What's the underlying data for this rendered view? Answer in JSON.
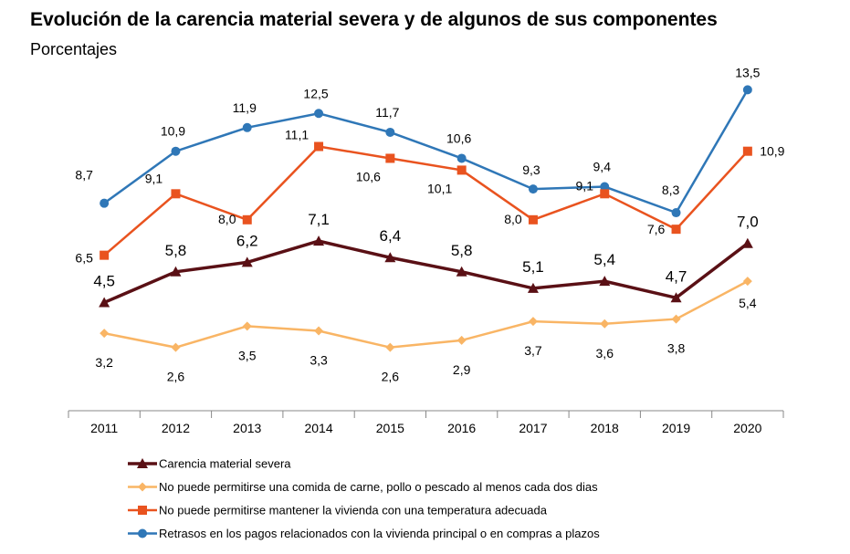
{
  "chart_data": {
    "type": "line",
    "title": "Evolución de la carencia material severa y de algunos de sus componentes",
    "subtitle": "Porcentajes",
    "categories": [
      "2011",
      "2012",
      "2013",
      "2014",
      "2015",
      "2016",
      "2017",
      "2018",
      "2019",
      "2020"
    ],
    "ylim": [
      0,
      14
    ],
    "grid": false,
    "legend_position": "bottom",
    "series": [
      {
        "name": "Carencia material severa",
        "color": "#5a1015",
        "marker": "triangle",
        "values": [
          4.5,
          5.8,
          6.2,
          7.1,
          6.4,
          5.8,
          5.1,
          5.4,
          4.7,
          7.0
        ],
        "labels": [
          "4,5",
          "5,8",
          "6,2",
          "7,1",
          "6,4",
          "5,8",
          "5,1",
          "5,4",
          "4,7",
          "7,0"
        ]
      },
      {
        "name": "No puede permitirse una comida de carne, pollo o pescado al menos cada dos dias",
        "color": "#f9b565",
        "marker": "diamond",
        "values": [
          3.2,
          2.6,
          3.5,
          3.3,
          2.6,
          2.9,
          3.7,
          3.6,
          3.8,
          5.4
        ],
        "labels": [
          "3,2",
          "2,6",
          "3,5",
          "3,3",
          "2,6",
          "2,9",
          "3,7",
          "3,6",
          "3,8",
          "5,4"
        ]
      },
      {
        "name": "No puede permitirse mantener la vivienda con una temperatura adecuada",
        "color": "#e9531f",
        "marker": "square",
        "values": [
          6.5,
          9.1,
          8.0,
          11.1,
          10.6,
          10.1,
          8.0,
          9.1,
          7.6,
          10.9
        ],
        "labels": [
          "6,5",
          "9,1",
          "8,0",
          "11,1",
          "10,6",
          "10,1",
          "8,0",
          "9,1",
          "7,6",
          "10,9"
        ]
      },
      {
        "name": "Retrasos en los pagos relacionados con la vivienda principal o en compras a plazos",
        "color": "#2f77b7",
        "marker": "circle",
        "values": [
          8.7,
          10.9,
          11.9,
          12.5,
          11.7,
          10.6,
          9.3,
          9.4,
          8.3,
          13.5
        ],
        "labels": [
          "8,7",
          "10,9",
          "11,9",
          "12,5",
          "11,7",
          "10,6",
          "9,3",
          "9,4",
          "8,3",
          "13,5"
        ]
      }
    ]
  }
}
